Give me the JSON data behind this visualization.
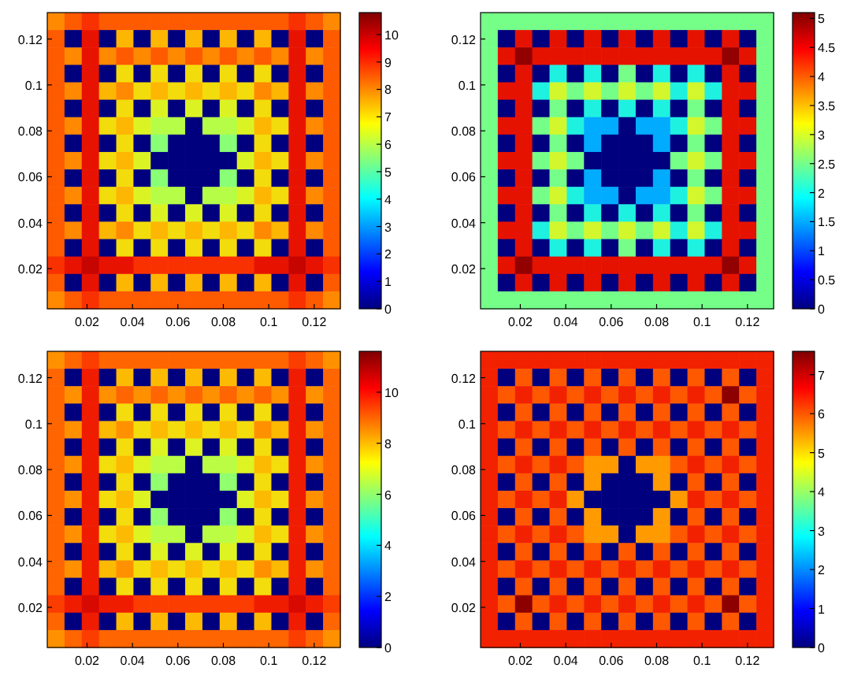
{
  "chart_data": [
    {
      "type": "heatmap",
      "xlim": [
        0.0025,
        0.1315
      ],
      "ylim": [
        0.0025,
        0.1315
      ],
      "xticks": [
        0.02,
        0.04,
        0.06,
        0.08,
        0.1,
        0.12
      ],
      "yticks": [
        0.02,
        0.04,
        0.06,
        0.08,
        0.1,
        0.12
      ],
      "clim": [
        0,
        10.8
      ],
      "cticks": [
        0,
        1,
        2,
        3,
        4,
        5,
        6,
        7,
        8,
        9,
        10
      ],
      "cells": [
        [
          8,
          8.5,
          9,
          8.5,
          8.5,
          8.5,
          8.5,
          8.5,
          8.5,
          8.5,
          8.5,
          8.5,
          8.5,
          8.5,
          9,
          8.5,
          8
        ],
        [
          8.5,
          0,
          9.5,
          0,
          7.5,
          0,
          7.5,
          0,
          7.5,
          0,
          7.5,
          0,
          7.5,
          0,
          9.5,
          0,
          8.5
        ],
        [
          8.5,
          8,
          9.5,
          8,
          8.5,
          8,
          8.5,
          8,
          8.5,
          8,
          8.5,
          8,
          8.5,
          8,
          9.5,
          8,
          8.5
        ],
        [
          8.5,
          0,
          9.5,
          0,
          7,
          0,
          7,
          0,
          7,
          0,
          7,
          0,
          7,
          0,
          9.5,
          0,
          8.5
        ],
        [
          8.5,
          8,
          9.5,
          7.5,
          8,
          7,
          7.5,
          7,
          7.5,
          7,
          7.5,
          7,
          8,
          7.5,
          9.5,
          8,
          8.5
        ],
        [
          8.5,
          0,
          9.5,
          0,
          7,
          0,
          6.5,
          0,
          6.5,
          0,
          6.5,
          0,
          7,
          0,
          9.5,
          0,
          8.5
        ],
        [
          8.5,
          8,
          9.5,
          7,
          7.5,
          6.5,
          6,
          6,
          0,
          6,
          6,
          6.5,
          7.5,
          7,
          9.5,
          8,
          8.5
        ],
        [
          8.5,
          0,
          9.5,
          0,
          7,
          0,
          5.5,
          0,
          0,
          0,
          5.5,
          0,
          7,
          0,
          9.5,
          0,
          8.5
        ],
        [
          8.5,
          8,
          9.5,
          7,
          7.5,
          6.5,
          0,
          0,
          0,
          0,
          0,
          6.5,
          7.5,
          7,
          9.5,
          8,
          8.5
        ],
        [
          8.5,
          0,
          9.5,
          0,
          7,
          0,
          5.5,
          0,
          0,
          0,
          5.5,
          0,
          7,
          0,
          9.5,
          0,
          8.5
        ],
        [
          8.5,
          8,
          9.5,
          7,
          7.5,
          6.5,
          6,
          6,
          0,
          6,
          6,
          6.5,
          7.5,
          7,
          9.5,
          8,
          8.5
        ],
        [
          8.5,
          0,
          9.5,
          0,
          7,
          0,
          6.5,
          0,
          6.5,
          0,
          6.5,
          0,
          7,
          0,
          9.5,
          0,
          8.5
        ],
        [
          8.5,
          8,
          9.5,
          7.5,
          8,
          7,
          7.5,
          7,
          7.5,
          7,
          7.5,
          7,
          8,
          7.5,
          9.5,
          8,
          8.5
        ],
        [
          8.5,
          0,
          9.5,
          0,
          7,
          0,
          7,
          0,
          7,
          0,
          7,
          0,
          7,
          0,
          9.5,
          0,
          8.5
        ],
        [
          9,
          9.5,
          10,
          9.5,
          9.5,
          9,
          9,
          9,
          9,
          9,
          9,
          9,
          9.5,
          9.5,
          10,
          9.5,
          9
        ],
        [
          8.5,
          0,
          9.5,
          0,
          7.5,
          0,
          7.5,
          0,
          7.5,
          0,
          7.5,
          0,
          7.5,
          0,
          9.5,
          0,
          8.5
        ],
        [
          8,
          8.5,
          9,
          8.5,
          8.5,
          8.5,
          8.5,
          8.5,
          8.5,
          8.5,
          8.5,
          8.5,
          8.5,
          8.5,
          9,
          8.5,
          8
        ]
      ]
    },
    {
      "type": "heatmap",
      "xlim": [
        0.0025,
        0.1315
      ],
      "ylim": [
        0.0025,
        0.1315
      ],
      "xticks": [
        0.02,
        0.04,
        0.06,
        0.08,
        0.1,
        0.12
      ],
      "yticks": [
        0.02,
        0.04,
        0.06,
        0.08,
        0.1,
        0.12
      ],
      "clim": [
        0,
        5.1
      ],
      "cticks": [
        0,
        0.5,
        1,
        1.5,
        2,
        2.5,
        3,
        3.5,
        4,
        4.5,
        5
      ],
      "cells": [
        [
          2.5,
          2.5,
          2.5,
          2.5,
          2.5,
          2.5,
          2.5,
          2.5,
          2.5,
          2.5,
          2.5,
          2.5,
          2.5,
          2.5,
          2.5,
          2.5,
          2.5
        ],
        [
          2.5,
          0,
          4.5,
          0,
          4.5,
          0,
          4.5,
          0,
          4.5,
          0,
          4.5,
          0,
          4.5,
          0,
          4.5,
          0,
          2.5
        ],
        [
          2.5,
          4.5,
          5,
          4.5,
          4.5,
          4.5,
          4.5,
          4.5,
          4.5,
          4.5,
          4.5,
          4.5,
          4.5,
          4.5,
          5,
          4.5,
          2.5
        ],
        [
          2.5,
          0,
          4.5,
          0,
          2,
          0,
          2,
          0,
          2.5,
          0,
          2,
          0,
          2,
          0,
          4.5,
          0,
          2.5
        ],
        [
          2.5,
          4.5,
          4.5,
          2,
          3,
          2.5,
          3,
          2.5,
          3,
          2.5,
          3,
          2,
          3,
          2,
          4.5,
          4.5,
          2.5
        ],
        [
          2.5,
          0,
          4.5,
          0,
          2.5,
          0,
          2,
          0,
          2,
          0,
          2,
          0,
          2.5,
          0,
          4.5,
          0,
          2.5
        ],
        [
          2.5,
          4.5,
          4.5,
          2.5,
          3,
          2,
          1.5,
          1.5,
          0,
          1.5,
          1.5,
          2,
          3,
          2.5,
          4.5,
          4.5,
          2.5
        ],
        [
          2.5,
          0,
          4.5,
          0,
          2.5,
          0,
          1.5,
          0,
          0,
          0,
          1.5,
          0,
          2.5,
          0,
          4.5,
          0,
          2.5
        ],
        [
          2.5,
          4.5,
          4.5,
          2.5,
          3,
          2.5,
          0,
          0,
          0,
          0,
          0,
          2.5,
          3,
          2.5,
          4.5,
          4.5,
          2.5
        ],
        [
          2.5,
          0,
          4.5,
          0,
          2.5,
          0,
          1.5,
          0,
          0,
          0,
          1.5,
          0,
          2.5,
          0,
          4.5,
          0,
          2.5
        ],
        [
          2.5,
          4.5,
          4.5,
          2.5,
          3,
          2,
          1.5,
          1.5,
          0,
          1.5,
          1.5,
          2,
          3,
          2.5,
          4.5,
          4.5,
          2.5
        ],
        [
          2.5,
          0,
          4.5,
          0,
          2.5,
          0,
          2,
          0,
          2,
          0,
          2,
          0,
          2.5,
          0,
          4.5,
          0,
          2.5
        ],
        [
          2.5,
          4.5,
          4.5,
          2,
          3,
          2.5,
          3,
          2.5,
          3,
          2.5,
          3,
          2,
          3,
          2,
          4.5,
          4.5,
          2.5
        ],
        [
          2.5,
          0,
          4.5,
          0,
          2,
          0,
          2,
          0,
          2.5,
          0,
          2,
          0,
          2,
          0,
          4.5,
          0,
          2.5
        ],
        [
          2.5,
          4.5,
          5,
          4.5,
          4.5,
          4.5,
          4.5,
          4.5,
          4.5,
          4.5,
          4.5,
          4.5,
          4.5,
          4.5,
          5,
          4.5,
          2.5
        ],
        [
          2.5,
          0,
          4.5,
          0,
          4.5,
          0,
          4.5,
          0,
          4.5,
          0,
          4.5,
          0,
          4.5,
          0,
          4.5,
          0,
          2.5
        ],
        [
          2.5,
          2.5,
          2.5,
          2.5,
          2.5,
          2.5,
          2.5,
          2.5,
          2.5,
          2.5,
          2.5,
          2.5,
          2.5,
          2.5,
          2.5,
          2.5,
          2.5
        ]
      ]
    },
    {
      "type": "heatmap",
      "xlim": [
        0.0025,
        0.1315
      ],
      "ylim": [
        0.0025,
        0.1315
      ],
      "xticks": [
        0.02,
        0.04,
        0.06,
        0.08,
        0.1,
        0.12
      ],
      "yticks": [
        0.02,
        0.04,
        0.06,
        0.08,
        0.1,
        0.12
      ],
      "clim": [
        0,
        11.6
      ],
      "cticks": [
        0,
        2,
        4,
        6,
        8,
        10
      ],
      "cells": [
        [
          8.5,
          9,
          9.5,
          9,
          9,
          9,
          9,
          9,
          9,
          9,
          9,
          9,
          9,
          9,
          9.5,
          9,
          8.5
        ],
        [
          9,
          0,
          10,
          0,
          8,
          0,
          8,
          0,
          8,
          0,
          8,
          0,
          8,
          0,
          10,
          0,
          9
        ],
        [
          9,
          8.5,
          10,
          8.5,
          9,
          8.5,
          9,
          8.5,
          9,
          8.5,
          9,
          8.5,
          9,
          8.5,
          10,
          8.5,
          9
        ],
        [
          9,
          0,
          10,
          0,
          7.5,
          0,
          7.5,
          0,
          7.5,
          0,
          7.5,
          0,
          7.5,
          0,
          10,
          0,
          9
        ],
        [
          9,
          8.5,
          10,
          8,
          8.5,
          7.5,
          8,
          7.5,
          8,
          7.5,
          8,
          7.5,
          8.5,
          8,
          10,
          8.5,
          9
        ],
        [
          9,
          0,
          10,
          0,
          7.5,
          0,
          7,
          0,
          7,
          0,
          7,
          0,
          7.5,
          0,
          10,
          0,
          9
        ],
        [
          9,
          8.5,
          10,
          7.5,
          8,
          7,
          6.5,
          6.5,
          0,
          6.5,
          6.5,
          7,
          8,
          7.5,
          10,
          8.5,
          9
        ],
        [
          9,
          0,
          10,
          0,
          7.5,
          0,
          6,
          0,
          0,
          0,
          6,
          0,
          7.5,
          0,
          10,
          0,
          9
        ],
        [
          9,
          8.5,
          10,
          7.5,
          8,
          7,
          0,
          0,
          0,
          0,
          0,
          7,
          8,
          7.5,
          10,
          8.5,
          9
        ],
        [
          9,
          0,
          10,
          0,
          7.5,
          0,
          6,
          0,
          0,
          0,
          6,
          0,
          7.5,
          0,
          10,
          0,
          9
        ],
        [
          9,
          8.5,
          10,
          7.5,
          8,
          7,
          6.5,
          6.5,
          0,
          6.5,
          6.5,
          7,
          8,
          7.5,
          10,
          8.5,
          9
        ],
        [
          9,
          0,
          10,
          0,
          7.5,
          0,
          7,
          0,
          7,
          0,
          7,
          0,
          7.5,
          0,
          10,
          0,
          9
        ],
        [
          9,
          8.5,
          10,
          8,
          8.5,
          7.5,
          8,
          7.5,
          8,
          7.5,
          8,
          7.5,
          8.5,
          8,
          10,
          8.5,
          9
        ],
        [
          9,
          0,
          10,
          0,
          7.5,
          0,
          7.5,
          0,
          7.5,
          0,
          7.5,
          0,
          7.5,
          0,
          10,
          0,
          9
        ],
        [
          9.5,
          10,
          10.5,
          10,
          10,
          9.5,
          9.5,
          9.5,
          9.5,
          9.5,
          9.5,
          9.5,
          10,
          10,
          10.5,
          10,
          9.5
        ],
        [
          9,
          0,
          10,
          0,
          8,
          0,
          8,
          0,
          8,
          0,
          8,
          0,
          8,
          0,
          10,
          0,
          9
        ],
        [
          8.5,
          9,
          9.5,
          9,
          9,
          9,
          9,
          9,
          9,
          9,
          9,
          9,
          9,
          9,
          9.5,
          9,
          8.5
        ]
      ]
    },
    {
      "type": "heatmap",
      "xlim": [
        0.0025,
        0.1315
      ],
      "ylim": [
        0.0025,
        0.1315
      ],
      "xticks": [
        0.02,
        0.04,
        0.06,
        0.08,
        0.1,
        0.12
      ],
      "yticks": [
        0.02,
        0.04,
        0.06,
        0.08,
        0.1,
        0.12
      ],
      "clim": [
        0,
        7.6
      ],
      "cticks": [
        0,
        1,
        2,
        3,
        4,
        5,
        6,
        7
      ],
      "cells": [
        [
          6.5,
          6.5,
          6.5,
          6.5,
          6.5,
          6.5,
          6.5,
          6.5,
          6.5,
          6.5,
          6.5,
          6.5,
          6.5,
          6.5,
          6.5,
          6.5,
          6.5
        ],
        [
          6.5,
          0,
          6,
          0,
          6,
          0,
          6,
          0,
          6,
          0,
          6,
          0,
          6,
          0,
          6,
          0,
          6.5
        ],
        [
          6.5,
          6,
          6.5,
          6,
          6.5,
          6,
          6.5,
          6,
          6.5,
          6,
          6.5,
          6,
          6.5,
          6,
          7.5,
          6,
          6.5
        ],
        [
          6.5,
          0,
          6,
          0,
          6,
          0,
          6,
          0,
          6,
          0,
          6,
          0,
          6,
          0,
          6,
          0,
          6.5
        ],
        [
          6.5,
          6,
          6.5,
          6,
          6.5,
          6,
          6.5,
          6,
          6.5,
          6,
          6.5,
          6,
          6.5,
          6,
          6.5,
          6,
          6.5
        ],
        [
          6.5,
          0,
          6,
          0,
          6,
          0,
          6,
          0,
          6,
          0,
          6,
          0,
          6,
          0,
          6,
          0,
          6.5
        ],
        [
          6.5,
          6,
          6.5,
          6,
          6.5,
          6,
          5.5,
          5.5,
          0,
          5.5,
          5.5,
          6,
          6.5,
          6,
          6.5,
          6,
          6.5
        ],
        [
          6.5,
          0,
          6,
          0,
          6,
          0,
          5.5,
          0,
          0,
          0,
          5.5,
          0,
          6,
          0,
          6,
          0,
          6.5
        ],
        [
          6.5,
          6,
          6.5,
          6,
          6.5,
          5.5,
          0,
          0,
          0,
          0,
          0,
          5.5,
          6.5,
          6,
          6.5,
          6,
          6.5
        ],
        [
          6.5,
          0,
          6,
          0,
          6,
          0,
          5.5,
          0,
          0,
          0,
          5.5,
          0,
          6,
          0,
          6,
          0,
          6.5
        ],
        [
          6.5,
          6,
          6.5,
          6,
          6.5,
          6,
          5.5,
          5.5,
          0,
          5.5,
          5.5,
          6,
          6.5,
          6,
          6.5,
          6,
          6.5
        ],
        [
          6.5,
          0,
          6,
          0,
          6,
          0,
          6,
          0,
          6,
          0,
          6,
          0,
          6,
          0,
          6,
          0,
          6.5
        ],
        [
          6.5,
          6,
          6.5,
          6,
          6.5,
          6,
          6.5,
          6,
          6.5,
          6,
          6.5,
          6,
          6.5,
          6,
          6.5,
          6,
          6.5
        ],
        [
          6.5,
          0,
          6,
          0,
          6,
          0,
          6,
          0,
          6,
          0,
          6,
          0,
          6,
          0,
          6,
          0,
          6.5
        ],
        [
          6.5,
          6,
          7.5,
          6,
          6.5,
          6,
          6.5,
          6,
          6.5,
          6,
          6.5,
          6,
          6.5,
          6,
          7.5,
          6,
          6.5
        ],
        [
          6.5,
          0,
          6,
          0,
          6,
          0,
          6,
          0,
          6,
          0,
          6,
          0,
          6,
          0,
          6,
          0,
          6.5
        ],
        [
          6.5,
          6.5,
          6.5,
          6.5,
          6.5,
          6.5,
          6.5,
          6.5,
          6.5,
          6.5,
          6.5,
          6.5,
          6.5,
          6.5,
          6.5,
          6.5,
          6.5
        ]
      ]
    }
  ]
}
